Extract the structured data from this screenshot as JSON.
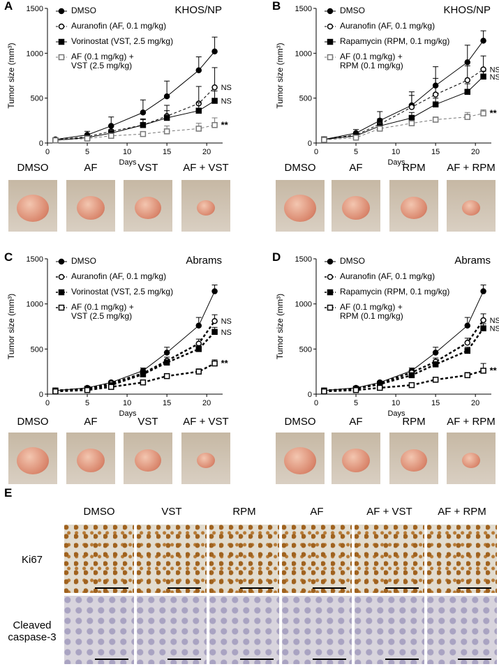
{
  "panel_letters": [
    "A",
    "B",
    "C",
    "D",
    "E"
  ],
  "chart_data": [
    {
      "type": "line",
      "title": "KHOS/NP",
      "xlabel": "Days",
      "ylabel": "Tumor size (mm³)",
      "x": [
        1,
        5,
        8,
        12,
        15,
        19,
        21
      ],
      "xlim": [
        0,
        22
      ],
      "xticks": [
        0,
        5,
        10,
        15,
        20
      ],
      "ylim": [
        0,
        1500
      ],
      "yticks": [
        0,
        500,
        1000,
        1500
      ],
      "series": [
        {
          "name": "DMSO",
          "color": "#000000",
          "marker": "circle",
          "filled": true,
          "dash": false,
          "width": 1,
          "values": [
            40,
            90,
            190,
            340,
            520,
            810,
            1020
          ],
          "errors": [
            10,
            40,
            100,
            140,
            170,
            150,
            160
          ]
        },
        {
          "name": "Auranofin (AF, 0.1 mg/kg)",
          "color": "#000000",
          "marker": "circle",
          "filled": false,
          "dash": true,
          "width": 1,
          "values": [
            35,
            70,
            130,
            200,
            300,
            440,
            620
          ],
          "errors": [
            5,
            30,
            60,
            70,
            120,
            190,
            220
          ],
          "annotation": "NS"
        },
        {
          "name": "Vorinostat (VST, 2.5 mg/kg)",
          "color": "#000000",
          "marker": "square",
          "filled": true,
          "dash": false,
          "width": 1,
          "values": [
            30,
            60,
            110,
            200,
            280,
            360,
            470
          ],
          "errors": [
            5,
            20,
            40,
            60,
            80,
            90,
            110
          ],
          "annotation": "NS"
        },
        {
          "name": "AF (0.1 mg/kg) +\nVST (2.5 mg/kg)",
          "color": "#777777",
          "marker": "square",
          "filled": false,
          "dash": true,
          "width": 1,
          "values": [
            30,
            50,
            80,
            100,
            130,
            160,
            200
          ],
          "errors": [
            5,
            15,
            20,
            20,
            60,
            60,
            80
          ],
          "annotation": "**"
        }
      ],
      "photo_labels": [
        "DMSO",
        "AF",
        "VST",
        "AF + VST"
      ]
    },
    {
      "type": "line",
      "title": "KHOS/NP",
      "xlabel": "Days",
      "ylabel": "Tumor size (mm³)",
      "x": [
        1,
        5,
        8,
        12,
        15,
        19,
        21
      ],
      "xlim": [
        0,
        22
      ],
      "xticks": [
        0,
        5,
        10,
        15,
        20
      ],
      "ylim": [
        0,
        1500
      ],
      "yticks": [
        0,
        500,
        1000,
        1500
      ],
      "series": [
        {
          "name": "DMSO",
          "color": "#000000",
          "marker": "circle",
          "filled": true,
          "dash": false,
          "width": 1,
          "values": [
            40,
            110,
            250,
            420,
            640,
            900,
            1140
          ],
          "errors": [
            10,
            40,
            100,
            150,
            210,
            190,
            110
          ]
        },
        {
          "name": "Auranofin (AF, 0.1 mg/kg)",
          "color": "#000000",
          "marker": "circle",
          "filled": false,
          "dash": true,
          "width": 1,
          "values": [
            40,
            90,
            210,
            400,
            540,
            700,
            820
          ],
          "errors": [
            10,
            30,
            60,
            130,
            180,
            160,
            150
          ],
          "annotation": "NS"
        },
        {
          "name": "Rapamycin (RPM, 0.1 mg/kg)",
          "color": "#000000",
          "marker": "square",
          "filled": true,
          "dash": false,
          "width": 1,
          "values": [
            40,
            80,
            190,
            280,
            430,
            570,
            740
          ],
          "errors": [
            5,
            20,
            40,
            60,
            70,
            90,
            60
          ],
          "annotation": "NS"
        },
        {
          "name": "AF (0.1 mg/kg) +\nRPM (0.1 mg/kg)",
          "color": "#777777",
          "marker": "square",
          "filled": false,
          "dash": true,
          "width": 1,
          "values": [
            35,
            60,
            160,
            220,
            260,
            290,
            330
          ],
          "errors": [
            5,
            10,
            20,
            30,
            30,
            50,
            40
          ],
          "annotation": "**"
        }
      ],
      "photo_labels": [
        "DMSO",
        "AF",
        "RPM",
        "AF + RPM"
      ]
    },
    {
      "type": "line",
      "title": "Abrams",
      "xlabel": "Days",
      "ylabel": "Tumor size (mm³)",
      "x": [
        1,
        5,
        8,
        12,
        15,
        19,
        21
      ],
      "xlim": [
        0,
        22
      ],
      "xticks": [
        0,
        5,
        10,
        15,
        20
      ],
      "ylim": [
        0,
        1500
      ],
      "yticks": [
        0,
        500,
        1000,
        1500
      ],
      "series": [
        {
          "name": "DMSO",
          "color": "#000000",
          "marker": "circle",
          "filled": true,
          "dash": false,
          "width": 1,
          "values": [
            40,
            70,
            130,
            260,
            460,
            760,
            1140
          ],
          "errors": [
            5,
            10,
            15,
            30,
            60,
            90,
            70
          ]
        },
        {
          "name": "Auranofin (AF, 0.1 mg/kg)",
          "color": "#000000",
          "marker": "circle",
          "filled": false,
          "dash": true,
          "width": 2.5,
          "values": [
            40,
            60,
            120,
            230,
            370,
            560,
            810
          ],
          "errors": [
            5,
            10,
            15,
            25,
            40,
            50,
            70
          ],
          "annotation": "NS"
        },
        {
          "name": "Vorinostat (VST, 2.5 mg/kg)",
          "color": "#000000",
          "marker": "square",
          "filled": true,
          "dash": true,
          "width": 2.5,
          "values": [
            40,
            60,
            100,
            220,
            350,
            500,
            690
          ],
          "errors": [
            5,
            10,
            15,
            25,
            30,
            40,
            50
          ],
          "annotation": "NS"
        },
        {
          "name": "AF (0.1 mg/kg) +\nVST (2.5 mg/kg)",
          "color": "#000000",
          "marker": "square",
          "filled": false,
          "dash": true,
          "width": 2.5,
          "values": [
            30,
            45,
            80,
            130,
            200,
            250,
            340
          ],
          "errors": [
            5,
            8,
            10,
            20,
            25,
            30,
            40
          ],
          "annotation": "**"
        }
      ],
      "photo_labels": [
        "DMSO",
        "AF",
        "VST",
        "AF + VST"
      ]
    },
    {
      "type": "line",
      "title": "Abrams",
      "xlabel": "Days",
      "ylabel": "Tumor size (mm³)",
      "x": [
        1,
        5,
        8,
        12,
        15,
        19,
        21
      ],
      "xlim": [
        0,
        22
      ],
      "xticks": [
        0,
        5,
        10,
        15,
        20
      ],
      "ylim": [
        0,
        1500
      ],
      "yticks": [
        0,
        500,
        1000,
        1500
      ],
      "series": [
        {
          "name": "DMSO",
          "color": "#000000",
          "marker": "circle",
          "filled": true,
          "dash": false,
          "width": 1,
          "values": [
            40,
            70,
            130,
            260,
            460,
            760,
            1140
          ],
          "errors": [
            5,
            10,
            15,
            30,
            60,
            90,
            70
          ]
        },
        {
          "name": "Auranofin (AF, 0.1 mg/kg)",
          "color": "#000000",
          "marker": "circle",
          "filled": false,
          "dash": true,
          "width": 2.5,
          "values": [
            40,
            60,
            120,
            240,
            360,
            570,
            820
          ],
          "errors": [
            5,
            10,
            15,
            25,
            40,
            50,
            70
          ],
          "annotation": "NS"
        },
        {
          "name": "Rapamycin (RPM, 0.1 mg/kg)",
          "color": "#000000",
          "marker": "square",
          "filled": true,
          "dash": true,
          "width": 2.5,
          "values": [
            40,
            60,
            110,
            210,
            330,
            480,
            730
          ],
          "errors": [
            5,
            10,
            15,
            25,
            30,
            40,
            50
          ],
          "annotation": "NS"
        },
        {
          "name": "AF (0.1 mg/kg) +\nRPM (0.1 mg/kg)",
          "color": "#000000",
          "marker": "square",
          "filled": false,
          "dash": true,
          "width": 2.5,
          "values": [
            30,
            45,
            70,
            100,
            160,
            210,
            260
          ],
          "errors": [
            5,
            8,
            10,
            20,
            25,
            30,
            80
          ],
          "annotation": "**"
        }
      ],
      "photo_labels": [
        "DMSO",
        "AF",
        "RPM",
        "AF + RPM"
      ]
    }
  ],
  "histology": {
    "columns": [
      "DMSO",
      "VST",
      "RPM",
      "AF",
      "AF + VST",
      "AF + RPM"
    ],
    "rows": [
      "Ki67",
      "Cleaved caspase-3"
    ]
  }
}
